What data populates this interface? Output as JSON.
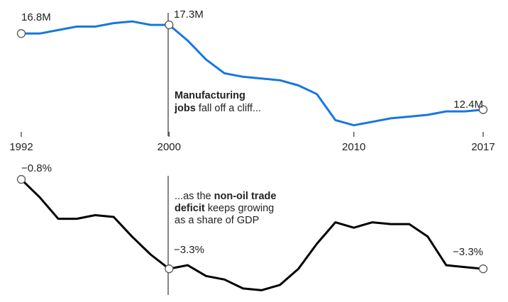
{
  "chart_data": [
    {
      "type": "line",
      "title": "Manufacturing jobs",
      "unit": "million jobs",
      "color": "#1877e0",
      "x_ticks": [
        "1992",
        "2000",
        "2010",
        "2017"
      ],
      "x": [
        1992,
        1993,
        1994,
        1995,
        1996,
        1997,
        1998,
        1999,
        2000,
        2001,
        2002,
        2003,
        2004,
        2005,
        2006,
        2007,
        2008,
        2009,
        2010,
        2011,
        2012,
        2013,
        2014,
        2015,
        2016,
        2017
      ],
      "values": [
        16.8,
        16.8,
        17.0,
        17.2,
        17.2,
        17.4,
        17.5,
        17.3,
        17.3,
        16.4,
        15.3,
        14.5,
        14.3,
        14.2,
        14.1,
        13.8,
        13.3,
        11.8,
        11.5,
        11.7,
        11.9,
        12.0,
        12.1,
        12.3,
        12.3,
        12.4
      ],
      "ylim": [
        11.2,
        18.0
      ],
      "point_labels": [
        {
          "x": 1992,
          "text": "16.8M"
        },
        {
          "x": 2000,
          "text": "17.3M"
        },
        {
          "x": 2017,
          "text": "12.4M"
        }
      ],
      "annotation": {
        "bold": "Manufacturing",
        "line2_bold": "jobs",
        "line2_rest": " fall off a cliff..."
      }
    },
    {
      "type": "line",
      "title": "Non-oil trade deficit as a share of GDP",
      "unit": "% of GDP",
      "color": "#000000",
      "x": [
        1992,
        1993,
        1994,
        1995,
        1996,
        1997,
        1998,
        1999,
        2000,
        2001,
        2002,
        2003,
        2004,
        2005,
        2006,
        2007,
        2008,
        2009,
        2010,
        2011,
        2012,
        2013,
        2014,
        2015,
        2016,
        2017
      ],
      "values": [
        -0.8,
        -1.3,
        -1.9,
        -1.9,
        -1.8,
        -1.85,
        -2.4,
        -2.9,
        -3.3,
        -3.2,
        -3.5,
        -3.6,
        -3.85,
        -3.9,
        -3.75,
        -3.3,
        -2.6,
        -2.0,
        -2.15,
        -2.0,
        -2.05,
        -2.05,
        -2.4,
        -3.2,
        -3.25,
        -3.3
      ],
      "ylim": [
        -4.05,
        -0.6
      ],
      "point_labels": [
        {
          "x": 1992,
          "text": "−0.8%"
        },
        {
          "x": 2000,
          "text": "−3.3%"
        },
        {
          "x": 2017,
          "text": "−3.3%"
        }
      ],
      "annotation": {
        "line1_rest": "...as the ",
        "line1_bold": "non-oil trade",
        "line2_bold": "deficit",
        "line2_rest": " keeps growing",
        "line3": "as a share of GDP"
      }
    }
  ]
}
